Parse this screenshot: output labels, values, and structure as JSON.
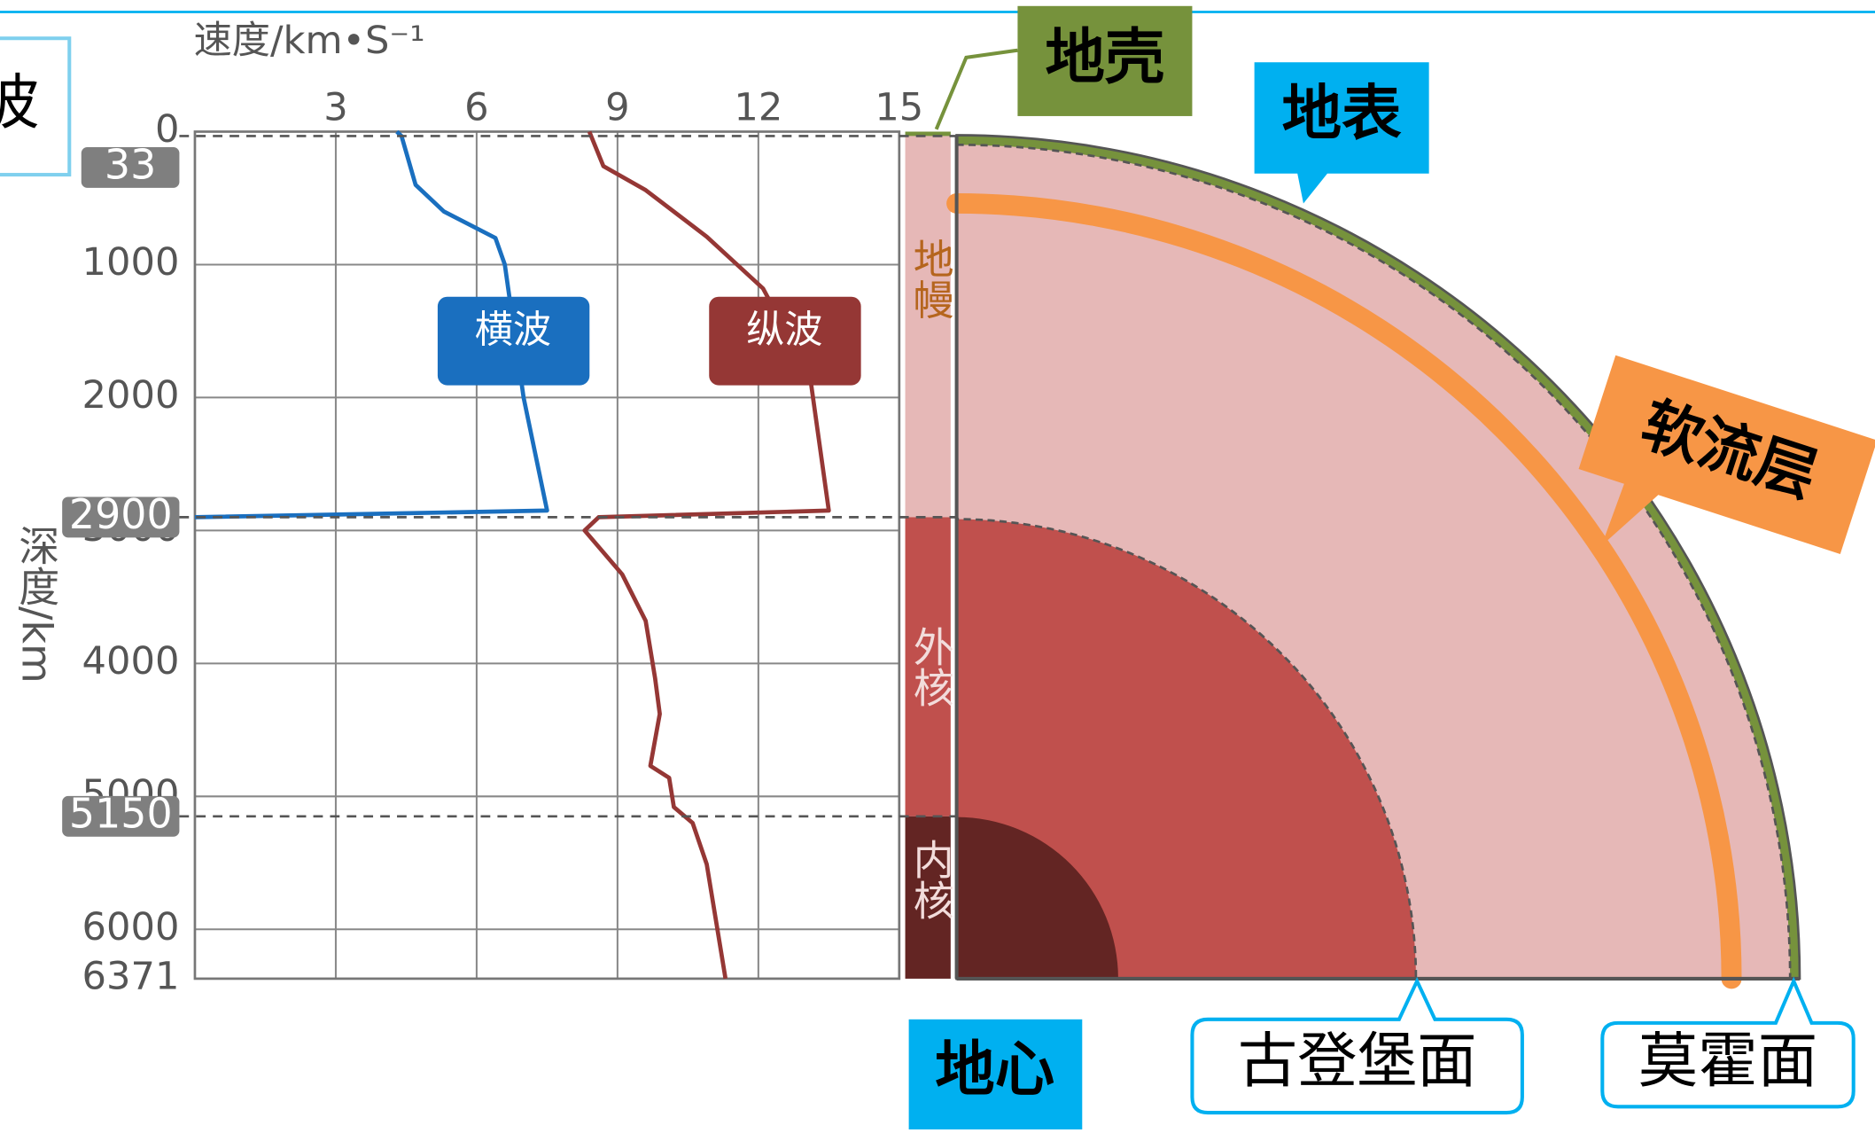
{
  "left_tab": "波",
  "chart_data": {
    "type": "line",
    "x_label": "速度/km•S⁻¹",
    "y_label": "深度/km",
    "xlim": [
      0,
      15
    ],
    "xticks": [
      3,
      6,
      9,
      12,
      15
    ],
    "ylim": [
      0,
      6371
    ],
    "yticks": [
      0,
      1000,
      2000,
      3000,
      4000,
      5000,
      6000,
      6371
    ],
    "grid": true,
    "boundaries": [
      33,
      2900,
      5150
    ],
    "series": [
      {
        "name": "横波",
        "color": "#1a6fbf",
        "values": [
          4.3,
          4.4,
          4.7,
          5.3,
          6.4,
          6.6,
          7.0,
          7.5,
          0
        ],
        "depth": [
          0,
          33,
          400,
          600,
          800,
          1000,
          2000,
          2850,
          2900
        ]
      },
      {
        "name": "纵波",
        "color": "#953735",
        "values": [
          8.4,
          8.7,
          9.6,
          10.9,
          12.1,
          13.1,
          13.5,
          8.6,
          8.3,
          9.1,
          9.6,
          9.8,
          9.9,
          9.7,
          10.1,
          10.2,
          10.6,
          10.9,
          11.3
        ],
        "depth": [
          0,
          260,
          440,
          790,
          1180,
          1840,
          2850,
          2900,
          3000,
          3330,
          3680,
          4110,
          4380,
          4770,
          4860,
          5080,
          5200,
          5510,
          6371
        ]
      }
    ]
  },
  "layers": {
    "mantle": "地幔",
    "outer_core": "外核",
    "inner_core": "内核"
  },
  "callouts": {
    "crust": "地壳",
    "surface": "地表",
    "asthenosphere": "软流层",
    "center": "地心",
    "gutenberg": "古登堡面",
    "moho": "莫霍面"
  }
}
